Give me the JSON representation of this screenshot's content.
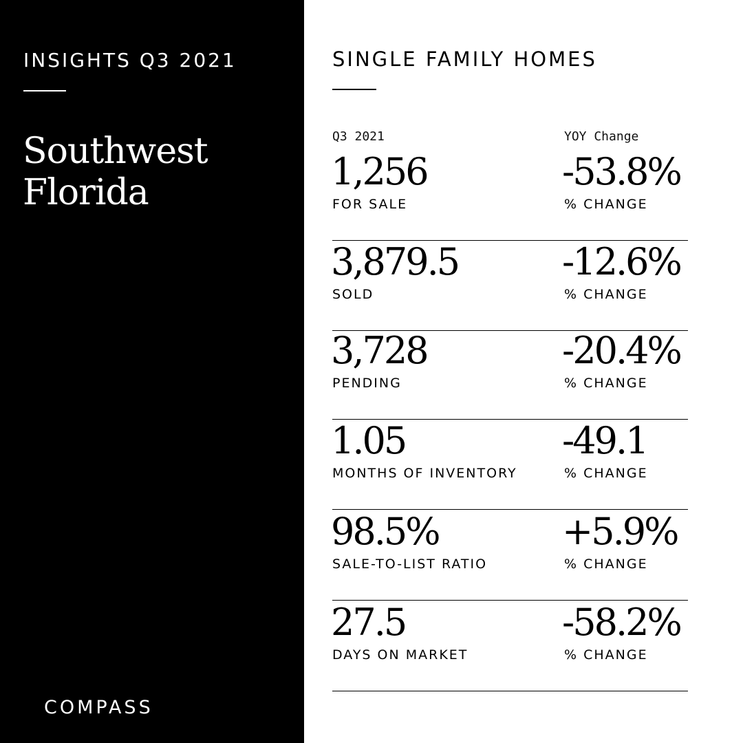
{
  "left": {
    "insights_title": "INSIGHTS Q3 2021",
    "region_line1": "Southwest",
    "region_line2": "Florida",
    "brand": "COMPASS"
  },
  "right": {
    "section_title": "SINGLE FAMILY HOMES",
    "col_left_header": "Q3 2021",
    "col_right_header": "YOY Change",
    "rows": [
      {
        "value": "1,256",
        "label": "FOR SALE",
        "change": "-53.8%",
        "change_label": "% CHANGE"
      },
      {
        "value": "3,879.5",
        "label": "SOLD",
        "change": "-12.6%",
        "change_label": "% CHANGE"
      },
      {
        "value": "3,728",
        "label": "PENDING",
        "change": "-20.4%",
        "change_label": "% CHANGE"
      },
      {
        "value": "1.05",
        "label": "MONTHS OF INVENTORY",
        "change": "-49.1",
        "change_label": "% CHANGE"
      },
      {
        "value": "98.5%",
        "label": "SALE-TO-LIST RATIO",
        "change": "+5.9%",
        "change_label": "% CHANGE"
      },
      {
        "value": "27.5",
        "label": "DAYS ON MARKET",
        "change": "-58.2%",
        "change_label": "% CHANGE"
      }
    ]
  },
  "colors": {
    "left_bg": "#000000",
    "right_bg": "#ffffff",
    "text_dark": "#000000",
    "text_light": "#ffffff"
  }
}
